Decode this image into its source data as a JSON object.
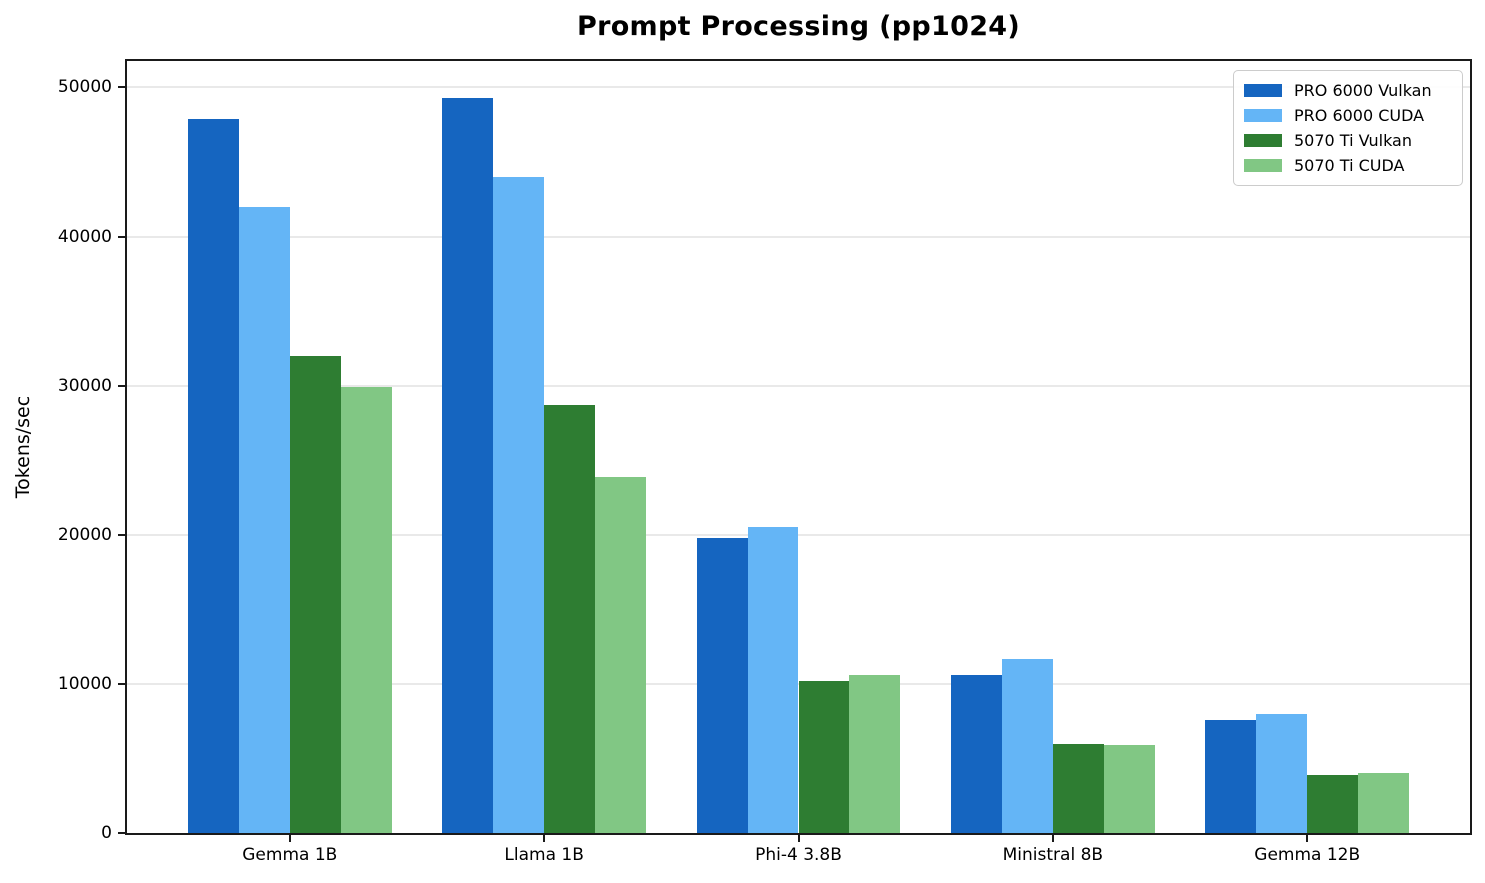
{
  "chart_data": {
    "type": "bar",
    "title": "Prompt Processing (pp1024)",
    "xlabel": "",
    "ylabel": "Tokens/sec",
    "categories": [
      "Gemma 1B",
      "Llama 1B",
      "Phi-4 3.8B",
      "Ministral 8B",
      "Gemma 12B"
    ],
    "series": [
      {
        "name": "PRO 6000 Vulkan",
        "color": "#1565C0",
        "values": [
          47900,
          49300,
          19800,
          10600,
          7600
        ]
      },
      {
        "name": "PRO 6000 CUDA",
        "color": "#64B5F6",
        "values": [
          42000,
          44000,
          20500,
          11700,
          8000
        ]
      },
      {
        "name": "5070 Ti Vulkan",
        "color": "#2E7D32",
        "values": [
          32000,
          28700,
          10200,
          6000,
          3900
        ]
      },
      {
        "name": "5070 Ti CUDA",
        "color": "#81C784",
        "values": [
          29900,
          23900,
          10600,
          5900,
          4000
        ]
      }
    ],
    "yticks": [
      0,
      10000,
      20000,
      30000,
      40000,
      50000
    ],
    "ylim": [
      0,
      51770
    ],
    "xlim": [
      -0.64,
      4.64
    ],
    "bar_width_units": 0.2,
    "grid": "horizontal",
    "legend_position": "upper right"
  },
  "style": {
    "spine_color": "#1a1a1a",
    "grid_color": "#e9e9e9",
    "legend_border_color": "#cccccc"
  }
}
